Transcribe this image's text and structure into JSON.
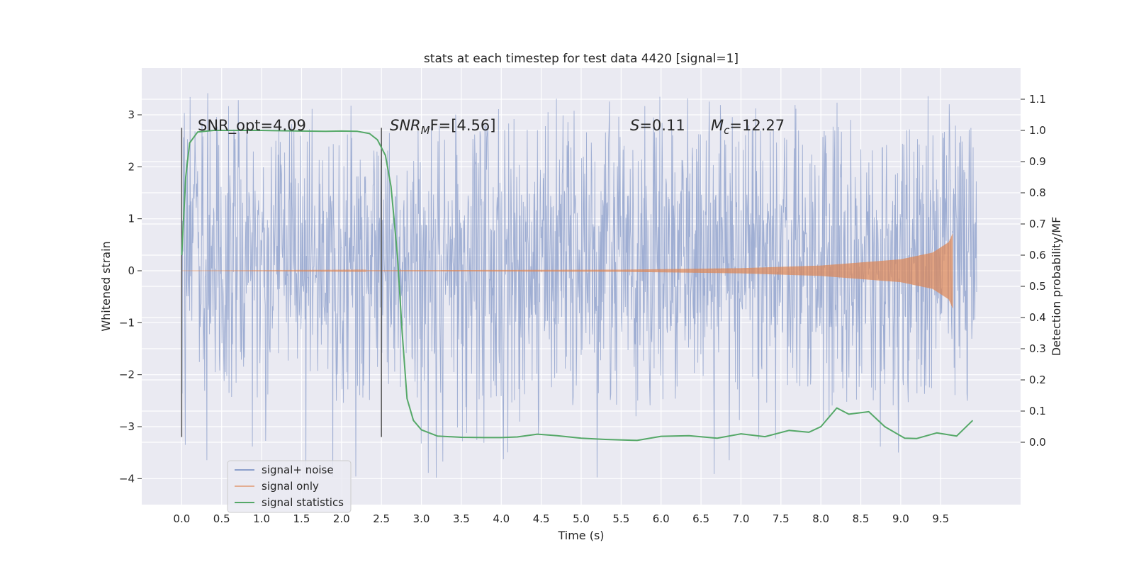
{
  "chart_data": {
    "type": "line",
    "title": "stats at each timestep for test data 4420 [signal=1]",
    "xlabel": "Time (s)",
    "ylabel_left": "Whitened strain",
    "ylabel_right": "Detection probability/MF",
    "xlim": [
      -0.5,
      10.5
    ],
    "ylim_left": [
      -4.5,
      3.9
    ],
    "ylim_right": [
      -0.2,
      1.2
    ],
    "x_ticks": [
      "0.0",
      "0.5",
      "1.0",
      "1.5",
      "2.0",
      "2.5",
      "3.0",
      "3.5",
      "4.0",
      "4.5",
      "5.0",
      "5.5",
      "6.0",
      "6.5",
      "7.0",
      "7.5",
      "8.0",
      "8.5",
      "9.0",
      "9.5"
    ],
    "y_ticks_left": [
      "3",
      "2",
      "1",
      "0",
      "−1",
      "−2",
      "−3",
      "−4"
    ],
    "y_ticks_right": [
      "1.1",
      "1.0",
      "0.9",
      "0.8",
      "0.7",
      "0.6",
      "0.5",
      "0.4",
      "0.3",
      "0.2",
      "0.1",
      "0.0"
    ],
    "grid": true,
    "legend_position": "lower-left",
    "annotations": {
      "snr_opt": "SNR_opt=4.09",
      "snr_mf_base": "SNR",
      "snr_mf_sub": "M",
      "snr_mf_rest": "F=[4.56]",
      "s_var": "S",
      "s_rest": "=0.11",
      "mc_var": "M",
      "mc_sub": "c",
      "mc_rest": "=12.27"
    },
    "markers": [
      {
        "x": 0.0,
        "y_from": -3.2,
        "y_to": 2.75
      },
      {
        "x": 2.5,
        "y_from": -3.2,
        "y_to": 2.75
      }
    ],
    "series": [
      {
        "name": "signal+ noise",
        "color": "#8c9fcb",
        "axis": "left",
        "x_range": [
          0.0,
          9.95
        ],
        "typical_range": [
          -1.2,
          1.5
        ],
        "extreme_range": [
          -4.0,
          3.5
        ]
      },
      {
        "name": "signal only",
        "color": "#dd8452",
        "axis": "left",
        "x_range": [
          0.0,
          9.65
        ],
        "envelope": [
          {
            "x": 0.0,
            "a": 0.0
          },
          {
            "x": 5.5,
            "a": 0.02
          },
          {
            "x": 7.0,
            "a": 0.05
          },
          {
            "x": 8.0,
            "a": 0.1
          },
          {
            "x": 9.0,
            "a": 0.22
          },
          {
            "x": 9.4,
            "a": 0.35
          },
          {
            "x": 9.6,
            "a": 0.55
          },
          {
            "x": 9.65,
            "a": 0.72
          }
        ]
      },
      {
        "name": "signal statistics",
        "color": "#55a868",
        "axis": "right",
        "points": [
          [
            0.0,
            0.6
          ],
          [
            0.05,
            0.85
          ],
          [
            0.1,
            0.96
          ],
          [
            0.2,
            0.995
          ],
          [
            0.4,
            1.0
          ],
          [
            1.0,
            1.0
          ],
          [
            1.5,
            0.998
          ],
          [
            1.8,
            0.997
          ],
          [
            2.0,
            0.998
          ],
          [
            2.2,
            0.997
          ],
          [
            2.35,
            0.99
          ],
          [
            2.45,
            0.97
          ],
          [
            2.55,
            0.92
          ],
          [
            2.62,
            0.82
          ],
          [
            2.7,
            0.6
          ],
          [
            2.76,
            0.35
          ],
          [
            2.82,
            0.14
          ],
          [
            2.9,
            0.07
          ],
          [
            3.0,
            0.04
          ],
          [
            3.2,
            0.02
          ],
          [
            3.5,
            0.016
          ],
          [
            3.8,
            0.015
          ],
          [
            4.0,
            0.015
          ],
          [
            4.2,
            0.017
          ],
          [
            4.45,
            0.026
          ],
          [
            4.7,
            0.021
          ],
          [
            5.0,
            0.013
          ],
          [
            5.3,
            0.009
          ],
          [
            5.7,
            0.006
          ],
          [
            6.0,
            0.019
          ],
          [
            6.35,
            0.021
          ],
          [
            6.7,
            0.013
          ],
          [
            7.0,
            0.027
          ],
          [
            7.3,
            0.018
          ],
          [
            7.6,
            0.038
          ],
          [
            7.85,
            0.032
          ],
          [
            8.0,
            0.05
          ],
          [
            8.2,
            0.11
          ],
          [
            8.35,
            0.09
          ],
          [
            8.6,
            0.098
          ],
          [
            8.8,
            0.05
          ],
          [
            9.05,
            0.013
          ],
          [
            9.2,
            0.012
          ],
          [
            9.45,
            0.03
          ],
          [
            9.7,
            0.02
          ],
          [
            9.9,
            0.07
          ]
        ]
      }
    ]
  }
}
